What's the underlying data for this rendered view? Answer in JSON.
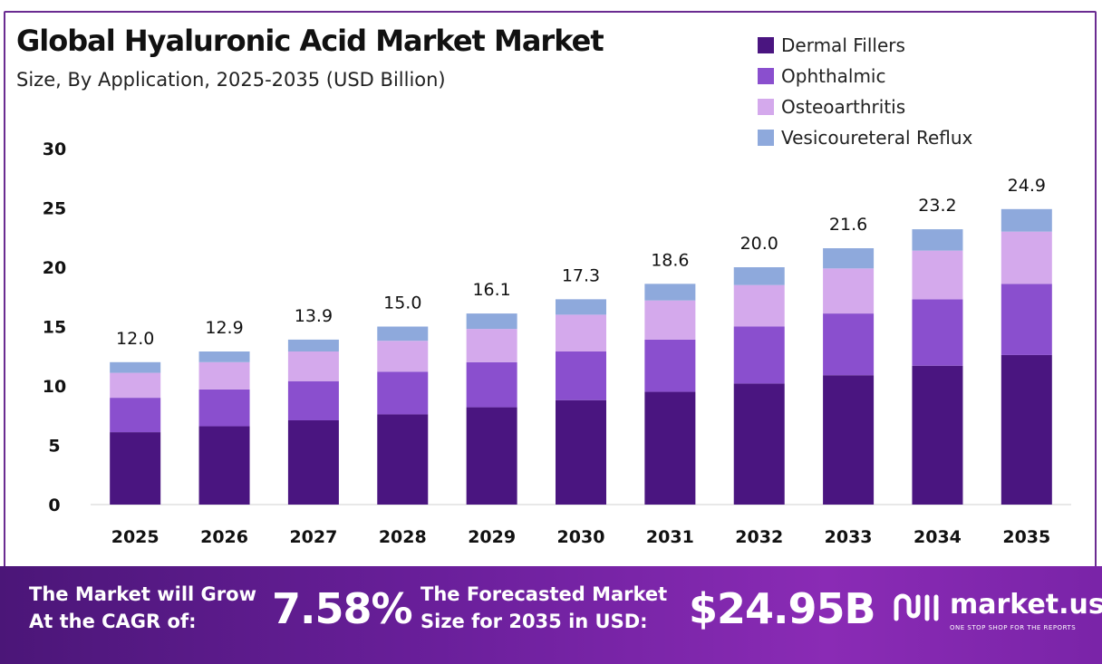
{
  "colors": {
    "dermal": "#4a1580",
    "ophthalmic": "#8a4fce",
    "osteo": "#d4a9ec",
    "vesico": "#8ea9dc",
    "frame": "#6a2c91"
  },
  "chart_data": {
    "type": "bar",
    "stacked": true,
    "title": "Global Hyaluronic Acid Market Market",
    "subtitle": "Size, By Application, 2025-2035 (USD Billion)",
    "categories": [
      "2025",
      "2026",
      "2027",
      "2028",
      "2029",
      "2030",
      "2031",
      "2032",
      "2033",
      "2034",
      "2035"
    ],
    "series": [
      {
        "name": "Dermal Fillers",
        "color": "#4a1580",
        "values": [
          6.1,
          6.6,
          7.1,
          7.6,
          8.2,
          8.8,
          9.5,
          10.2,
          10.9,
          11.7,
          12.6
        ]
      },
      {
        "name": "Ophthalmic",
        "color": "#8a4fce",
        "values": [
          2.9,
          3.1,
          3.3,
          3.6,
          3.8,
          4.1,
          4.4,
          4.8,
          5.2,
          5.6,
          6.0
        ]
      },
      {
        "name": "Osteoarthritis",
        "color": "#d4a9ec",
        "values": [
          2.1,
          2.3,
          2.5,
          2.6,
          2.8,
          3.1,
          3.3,
          3.5,
          3.8,
          4.1,
          4.4
        ]
      },
      {
        "name": "Vesicoureteral Reflux",
        "color": "#8ea9dc",
        "values": [
          0.9,
          0.9,
          1.0,
          1.2,
          1.3,
          1.3,
          1.4,
          1.5,
          1.7,
          1.8,
          1.9
        ]
      }
    ],
    "totals": [
      "12.0",
      "12.9",
      "13.9",
      "15.0",
      "16.1",
      "17.3",
      "18.6",
      "20.0",
      "21.6",
      "23.2",
      "24.9"
    ],
    "yticks": [
      "0",
      "5",
      "10",
      "15",
      "20",
      "25",
      "30"
    ],
    "ylim": [
      0,
      30
    ],
    "grid": false,
    "legend_position": "top-right"
  },
  "footer": {
    "cagr_line1": "The Market will Grow",
    "cagr_line2": "At the CAGR of:",
    "cagr_value": "7.58%",
    "forecast_line1": "The Forecasted Market",
    "forecast_line2": "Size for 2035 in USD:",
    "forecast_value": "$24.95B",
    "brand_name": "market.us",
    "brand_tagline": "ONE STOP SHOP FOR THE REPORTS",
    "brand_icon": "market-us-logo-icon"
  }
}
